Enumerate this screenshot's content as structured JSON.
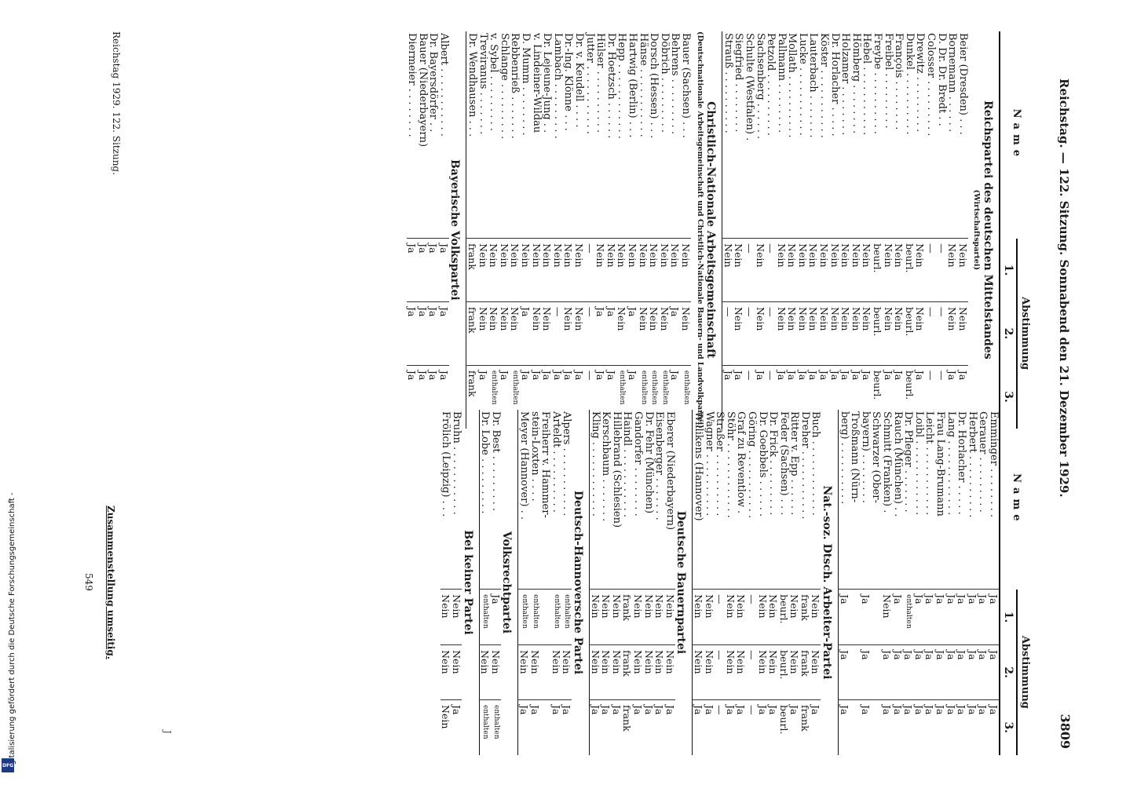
{
  "credit": {
    "text": "Digitalisierung gefördert durch die Deutsche Forschungsgemeinschaft -",
    "logo": "DFG"
  },
  "header": {
    "left": "Reichstag. — 122. Sitzung. Sonnabend den 21. Dezember 1929.",
    "right": "3809"
  },
  "columns_header": {
    "name": "Name",
    "group": "Abstimmung",
    "v1": "1.",
    "v2": "2.",
    "v3": "3."
  },
  "left": [
    {
      "party": "Reichspartei des deutschen Mittelstandes",
      "sub": "(Wirtschaftspartei)",
      "rows": [
        [
          "Beier (Dresden) . . .",
          "Nein",
          "Nein",
          "Ja"
        ],
        [
          "Bornemann . . . . . .",
          "Nein",
          "Nein",
          "Ja"
        ],
        [
          "D. Dr. Dr. Bredt . .",
          "—",
          "—",
          "—"
        ],
        [
          "Colosser . . . . . . . . .",
          "—",
          "—",
          "—"
        ],
        [
          "Drewitz . . . . . . . . .",
          "Nein",
          "Nein",
          "Ja"
        ],
        [
          "Dunkel . . . . . . . . . .",
          "beurl.",
          "beurl.",
          "beurl."
        ],
        [
          "François . . . . . . . .",
          "Nein",
          "Nein",
          "Ja"
        ],
        [
          "Freibel . . . . . . . . .",
          "Nein",
          "Nein",
          "Ja"
        ],
        [
          "Freybe . . . . . . . . . .",
          "beurl.",
          "beurl.",
          "beurl."
        ],
        [
          "Hebel . . . . . . . . . . .",
          "Nein",
          "Nein",
          "Ja"
        ],
        [
          "Hömberg . . . . . . . .",
          "Nein",
          "Nein",
          "Ja"
        ],
        [
          "Holzamer . . . . . . . .",
          "Nein",
          "Nein",
          "Ja"
        ],
        [
          "Dr. Horlacher . . . . .",
          "Nein",
          "Nein",
          "Ja"
        ],
        [
          "Köster . . . . . . . . . . .",
          "Nein",
          "Nein",
          "Ja"
        ],
        [
          "Lauterbach . . . . . . .",
          "Nein",
          "Nein",
          "Ja"
        ],
        [
          "Lucke . . . . . . . . . . .",
          "Nein",
          "Nein",
          "Ja"
        ],
        [
          "Mollath . . . . . . . . . .",
          "Nein",
          "Nein",
          "Ja"
        ],
        [
          "Pallmann . . . . . . . .",
          "Nein",
          "Nein",
          "Ja"
        ],
        [
          "Petzold . . . . . . . . . .",
          "—",
          "—",
          "—"
        ],
        [
          "Sachsenberg . . . . . .",
          "Nein",
          "Nein",
          "Ja"
        ],
        [
          "Schulte (Westfalen) .",
          "—",
          "—",
          "—"
        ],
        [
          "Siegfried . . . . . . . .",
          "Nein",
          "Nein",
          "Ja"
        ],
        [
          "Strauß . . . . . . . . . .",
          "Nein",
          "—",
          "Ja"
        ]
      ]
    },
    {
      "party": "Christlich-Nationale Arbeitsgemeinschaft",
      "sub": "(Deutschnationale Arbeitsgemeinschaft und Christlich-Nationale Bauern- und Landvolkpartei)",
      "rows": [
        [
          "Bauer (Sachsen) . . .",
          "Nein",
          "Nein",
          "enthalten"
        ],
        [
          "Behrens . . . . . . . . .",
          "Nein",
          "Ja",
          "Ja"
        ],
        [
          "Döbrich . . . . . . . . .",
          "Nein",
          "Nein",
          "enthalten"
        ],
        [
          "Dorsch (Hessen) . . .",
          "Nein",
          "Nein",
          "enthalten"
        ],
        [
          "Hänse . . . . . . . . . . .",
          "Nein",
          "Nein",
          "enthalten"
        ],
        [
          "Hartwig (Berlin) . . .",
          "Nein",
          "Ja",
          "Ja"
        ],
        [
          "Hepp . . . . . . . . . . . .",
          "Nein",
          "Nein",
          "enthalten"
        ],
        [
          "Dr. Hoetzsch . . . . . .",
          "Nein",
          "Ja",
          "Ja"
        ],
        [
          "Hülser . . . . . . . . . .",
          "Nein",
          "Ja",
          "Ja"
        ],
        [
          "Jutter . . . . . . . . . . .",
          "—",
          "—",
          "—"
        ],
        [
          "Dr. v. Keudell . . . .",
          "Nein",
          "Nein",
          "Ja"
        ],
        [
          "Dr.-Ing. Klönne . . .",
          "Nein",
          "Nein",
          "Ja"
        ],
        [
          "Lambach . . . . . . . . .",
          "Nein",
          "—",
          "Ja"
        ],
        [
          "Dr. Lejeune-Jung . .",
          "Nein",
          "Nein",
          "Ja"
        ],
        [
          "v. Lindeiner-Wildau",
          "Nein",
          "Nein",
          "Ja"
        ],
        [
          "D. Mumm . . . . . . . .",
          "Nein",
          "Ja",
          "Ja"
        ],
        [
          "Rebbenrieß . . . . . . .",
          "Nein",
          "Nein",
          "enthalten"
        ],
        [
          "Schlange . . . . . . . . .",
          "Nein",
          "Nein",
          "Ja"
        ],
        [
          "v. Sybel . . . . . . . . .",
          "Nein",
          "Nein",
          "enthalten"
        ],
        [
          "Treviranus . . . . . . .",
          "Nein",
          "Nein",
          "Ja"
        ],
        [
          "Dr. Wendhausen . . .",
          "frank",
          "frank",
          "frank"
        ]
      ]
    },
    {
      "party": "Bayerische Volkspartei",
      "sub": "",
      "rows": [
        [
          "Albert . . . . . . . . . . .",
          "Ja",
          "Ja",
          "Ja"
        ],
        [
          "Dr. Bayersdörfer . .",
          "Ja",
          "Ja",
          "Ja"
        ],
        [
          "Bauer (Niederbayern)",
          "Ja",
          "Ja",
          "Ja"
        ],
        [
          "Diermeier . . . . . . . .",
          "Ja",
          "Ja",
          "Ja"
        ]
      ]
    }
  ],
  "right": [
    {
      "party": "",
      "sub": "",
      "rows": [
        [
          "Emminger . . . . . . . .",
          "Ja",
          "Ja",
          "Ja"
        ],
        [
          "Gerauer . . . . . . . . .",
          "Ja",
          "Ja",
          "Ja"
        ],
        [
          "Herbert . . . . . . . . . .",
          "Ja",
          "Ja",
          "Ja"
        ],
        [
          "Dr. Horlacher . . . . .",
          "Ja",
          "Ja",
          "Ja"
        ],
        [
          "Lang . . . . . . . . . . . .",
          "Ja",
          "Ja",
          "Ja"
        ],
        [
          "Frau Lang-Brumann",
          "Ja",
          "Ja",
          "Ja"
        ],
        [
          "Leicht . . . . . . . . . . .",
          "Ja",
          "Ja",
          "Ja"
        ],
        [
          "Loibl . . . . . . . . . . . .",
          "Ja",
          "Ja",
          "Ja"
        ],
        [
          "Dr. Pfleger . . . . . . .",
          "enthalten",
          "Ja",
          "Ja"
        ],
        [
          "Rauch (München) . .",
          "Ja",
          "Ja",
          "Ja"
        ],
        [
          "Schmitt (Franken) .",
          "Nein",
          "Ja",
          "Ja"
        ],
        [
          "Schwarzer (Ober-",
          "",
          "",
          ""
        ],
        [
          "   bayern) . . . . . . . .",
          "Ja",
          "Ja",
          "Ja"
        ],
        [
          "Troßmann (Nürn-",
          "",
          "",
          ""
        ],
        [
          "   berg) . . . . . . . . . .",
          "Ja",
          "Ja",
          "Ja"
        ]
      ]
    },
    {
      "party": "Nat.-soz. Dtsch. Arbeiter-Partei",
      "sub": "",
      "rows": [
        [
          "Buch . . . . . . . . . . . .",
          "Nein",
          "Nein",
          "Ja"
        ],
        [
          "Dreher . . . . . . . . . . .",
          "frank",
          "frank",
          "frank"
        ],
        [
          "Ritter v. Epp . . . . . .",
          "Nein",
          "Nein",
          "Ja"
        ],
        [
          "Feder (Sachsen) . . .",
          "beurl.",
          "beurl.",
          "beurl."
        ],
        [
          "Dr. Frick . . . . . . . . .",
          "Nein",
          "Nein",
          "Ja"
        ],
        [
          "Dr. Goebbels . . . . . .",
          "Nein",
          "Nein",
          "Ja"
        ],
        [
          "Göring . . . . . . . . . . .",
          "—",
          "—",
          "—"
        ],
        [
          "Graf zu Reventlow .",
          "Nein",
          "Nein",
          "Ja"
        ],
        [
          "Stöhr . . . . . . . . . . . .",
          "Nein",
          "Nein",
          "Ja"
        ],
        [
          "Straßer . . . . . . . . . .",
          "—",
          "—",
          "—"
        ],
        [
          "Wagner . . . . . . . . . .",
          "Nein",
          "Nein",
          "Ja"
        ],
        [
          "Willikens (Hannover)",
          "Nein",
          "Nein",
          "Ja"
        ]
      ]
    },
    {
      "party": "Deutsche Bauernpartei",
      "sub": "",
      "rows": [
        [
          "Eberer (Niederbayern)",
          "Nein",
          "Nein",
          "Ja"
        ],
        [
          "Eisenberger . . . . . . .",
          "Nein",
          "Nein",
          "Ja"
        ],
        [
          "Dr. Fehr (München)",
          "Nein",
          "Nein",
          "Ja"
        ],
        [
          "Gandorfer . . . . . . . .",
          "Nein",
          "Nein",
          "Ja"
        ],
        [
          "Haindl . . . . . . . . . . .",
          "frank",
          "frank",
          "frank"
        ],
        [
          "Hillebrand (Schlesien)",
          "Nein",
          "Nein",
          "Ja"
        ],
        [
          "Kerschbaum . . . . . . .",
          "Nein",
          "Nein",
          "Ja"
        ],
        [
          "Kling . . . . . . . . . . . .",
          "Nein",
          "Nein",
          "Ja"
        ]
      ]
    },
    {
      "party": "Deutsch-Hannoversche Partei",
      "sub": "",
      "rows": [
        [
          "Alpers . . . . . . . . . . .",
          "enthalten",
          "Nein",
          "Ja"
        ],
        [
          "Arteldt . . . . . . . . . .",
          "enthalten",
          "Nein",
          "Ja"
        ],
        [
          "Freiherr v. Hammer-",
          "",
          "",
          ""
        ],
        [
          "   stein-Loxten . . . .",
          "enthalten",
          "Nein",
          "Ja"
        ],
        [
          "Meyer (Hannover) . .",
          "enthalten",
          "Nein",
          "Ja"
        ]
      ]
    },
    {
      "party": "Volksrechtpartei",
      "sub": "",
      "rows": [
        [
          "Dr. Best . . . . . . . . .",
          "Ja",
          "Nein",
          "enthalten"
        ],
        [
          "Dr. Lobe . . . . . . . . .",
          "enthalten",
          "Nein",
          "enthalten"
        ]
      ]
    },
    {
      "party": "Bei keiner Partei",
      "sub": "",
      "rows": [
        [
          "Bruhn . . . . . . . . . . .",
          "Nein",
          "Nein",
          "Ja"
        ],
        [
          "Frölich (Leipzig) . . .",
          "Nein",
          "Nein",
          "Nein"
        ]
      ]
    }
  ],
  "footer": {
    "left": "Reichstag 1929. 122. Sitzung.",
    "right": "Zusammenstellung umseitig.",
    "page": "549",
    "mark": "J"
  }
}
